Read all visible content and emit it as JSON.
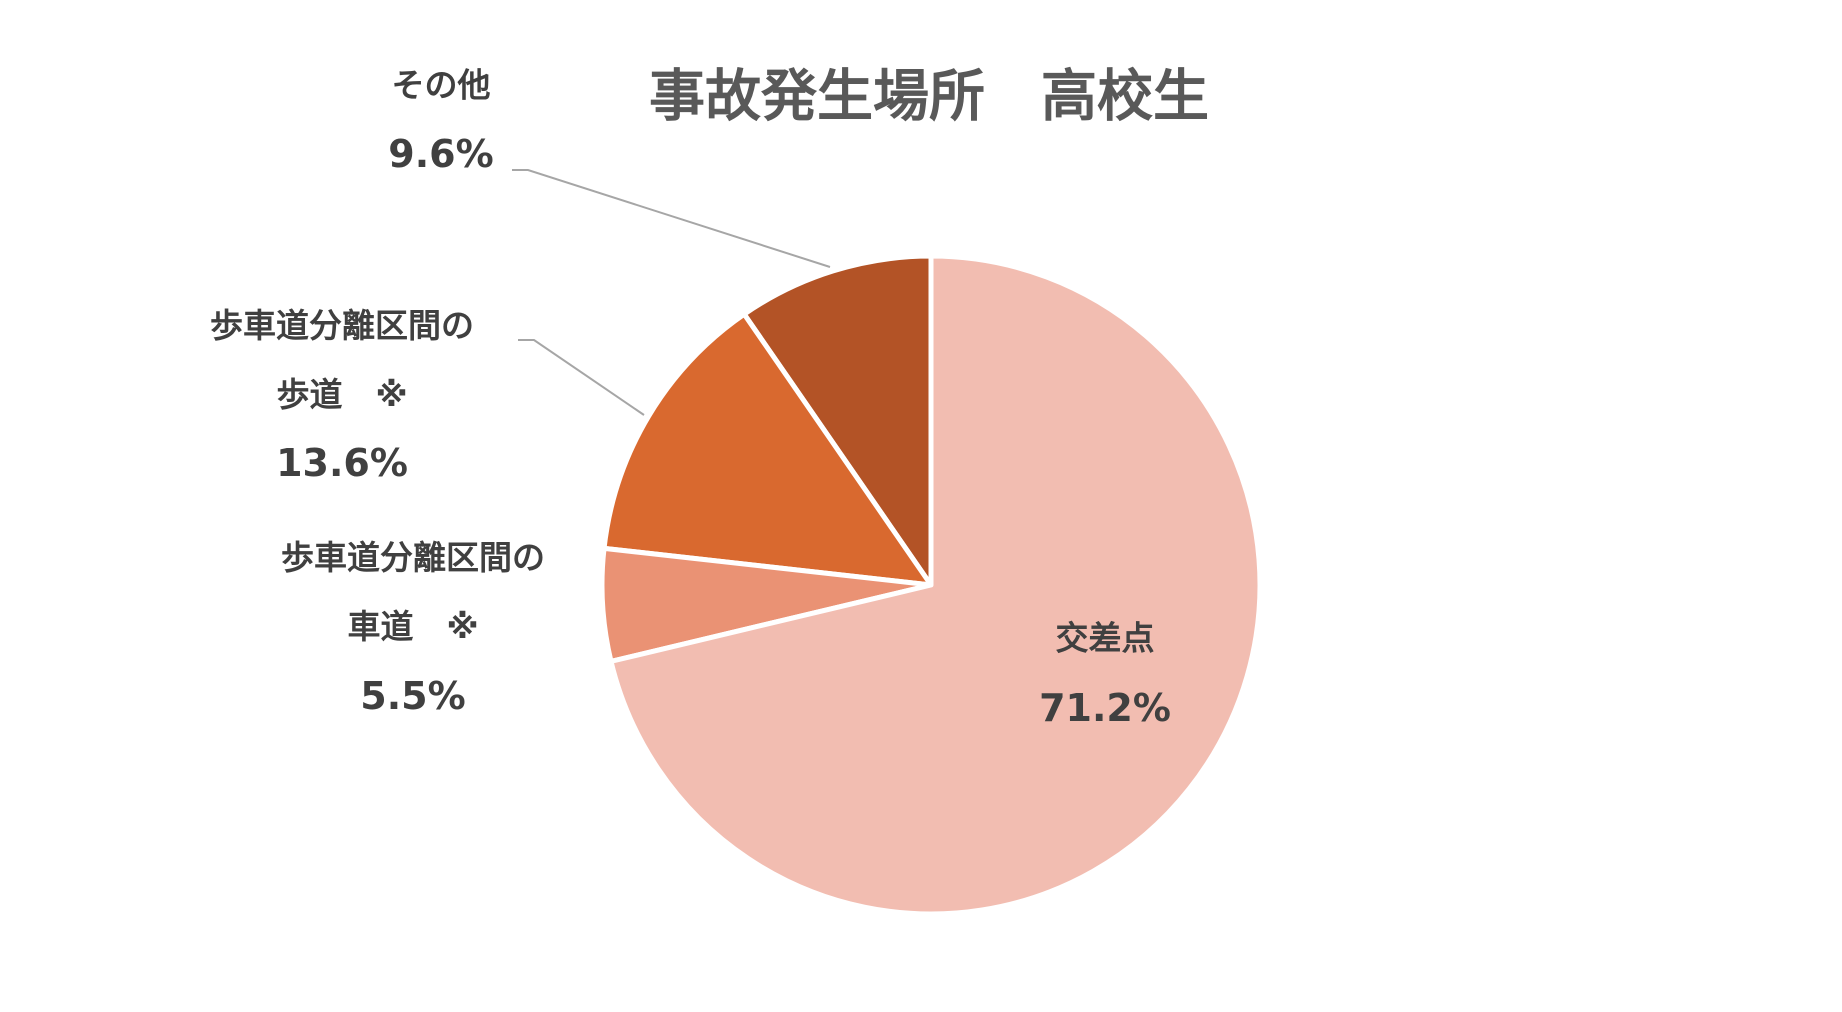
{
  "chart_data": {
    "type": "pie",
    "title": "事故発生場所　高校生",
    "categories": [
      "交差点",
      "歩車道分離区間の\n車道　※",
      "歩車道分離区間の\n歩道　※",
      "その他"
    ],
    "values": [
      71.2,
      5.5,
      13.6,
      9.6
    ],
    "value_labels": [
      "71.2%",
      "5.5%",
      "13.6%",
      "9.6%"
    ],
    "colors": [
      "#f2bdb1",
      "#ea9274",
      "#d9692f",
      "#b35326"
    ]
  }
}
